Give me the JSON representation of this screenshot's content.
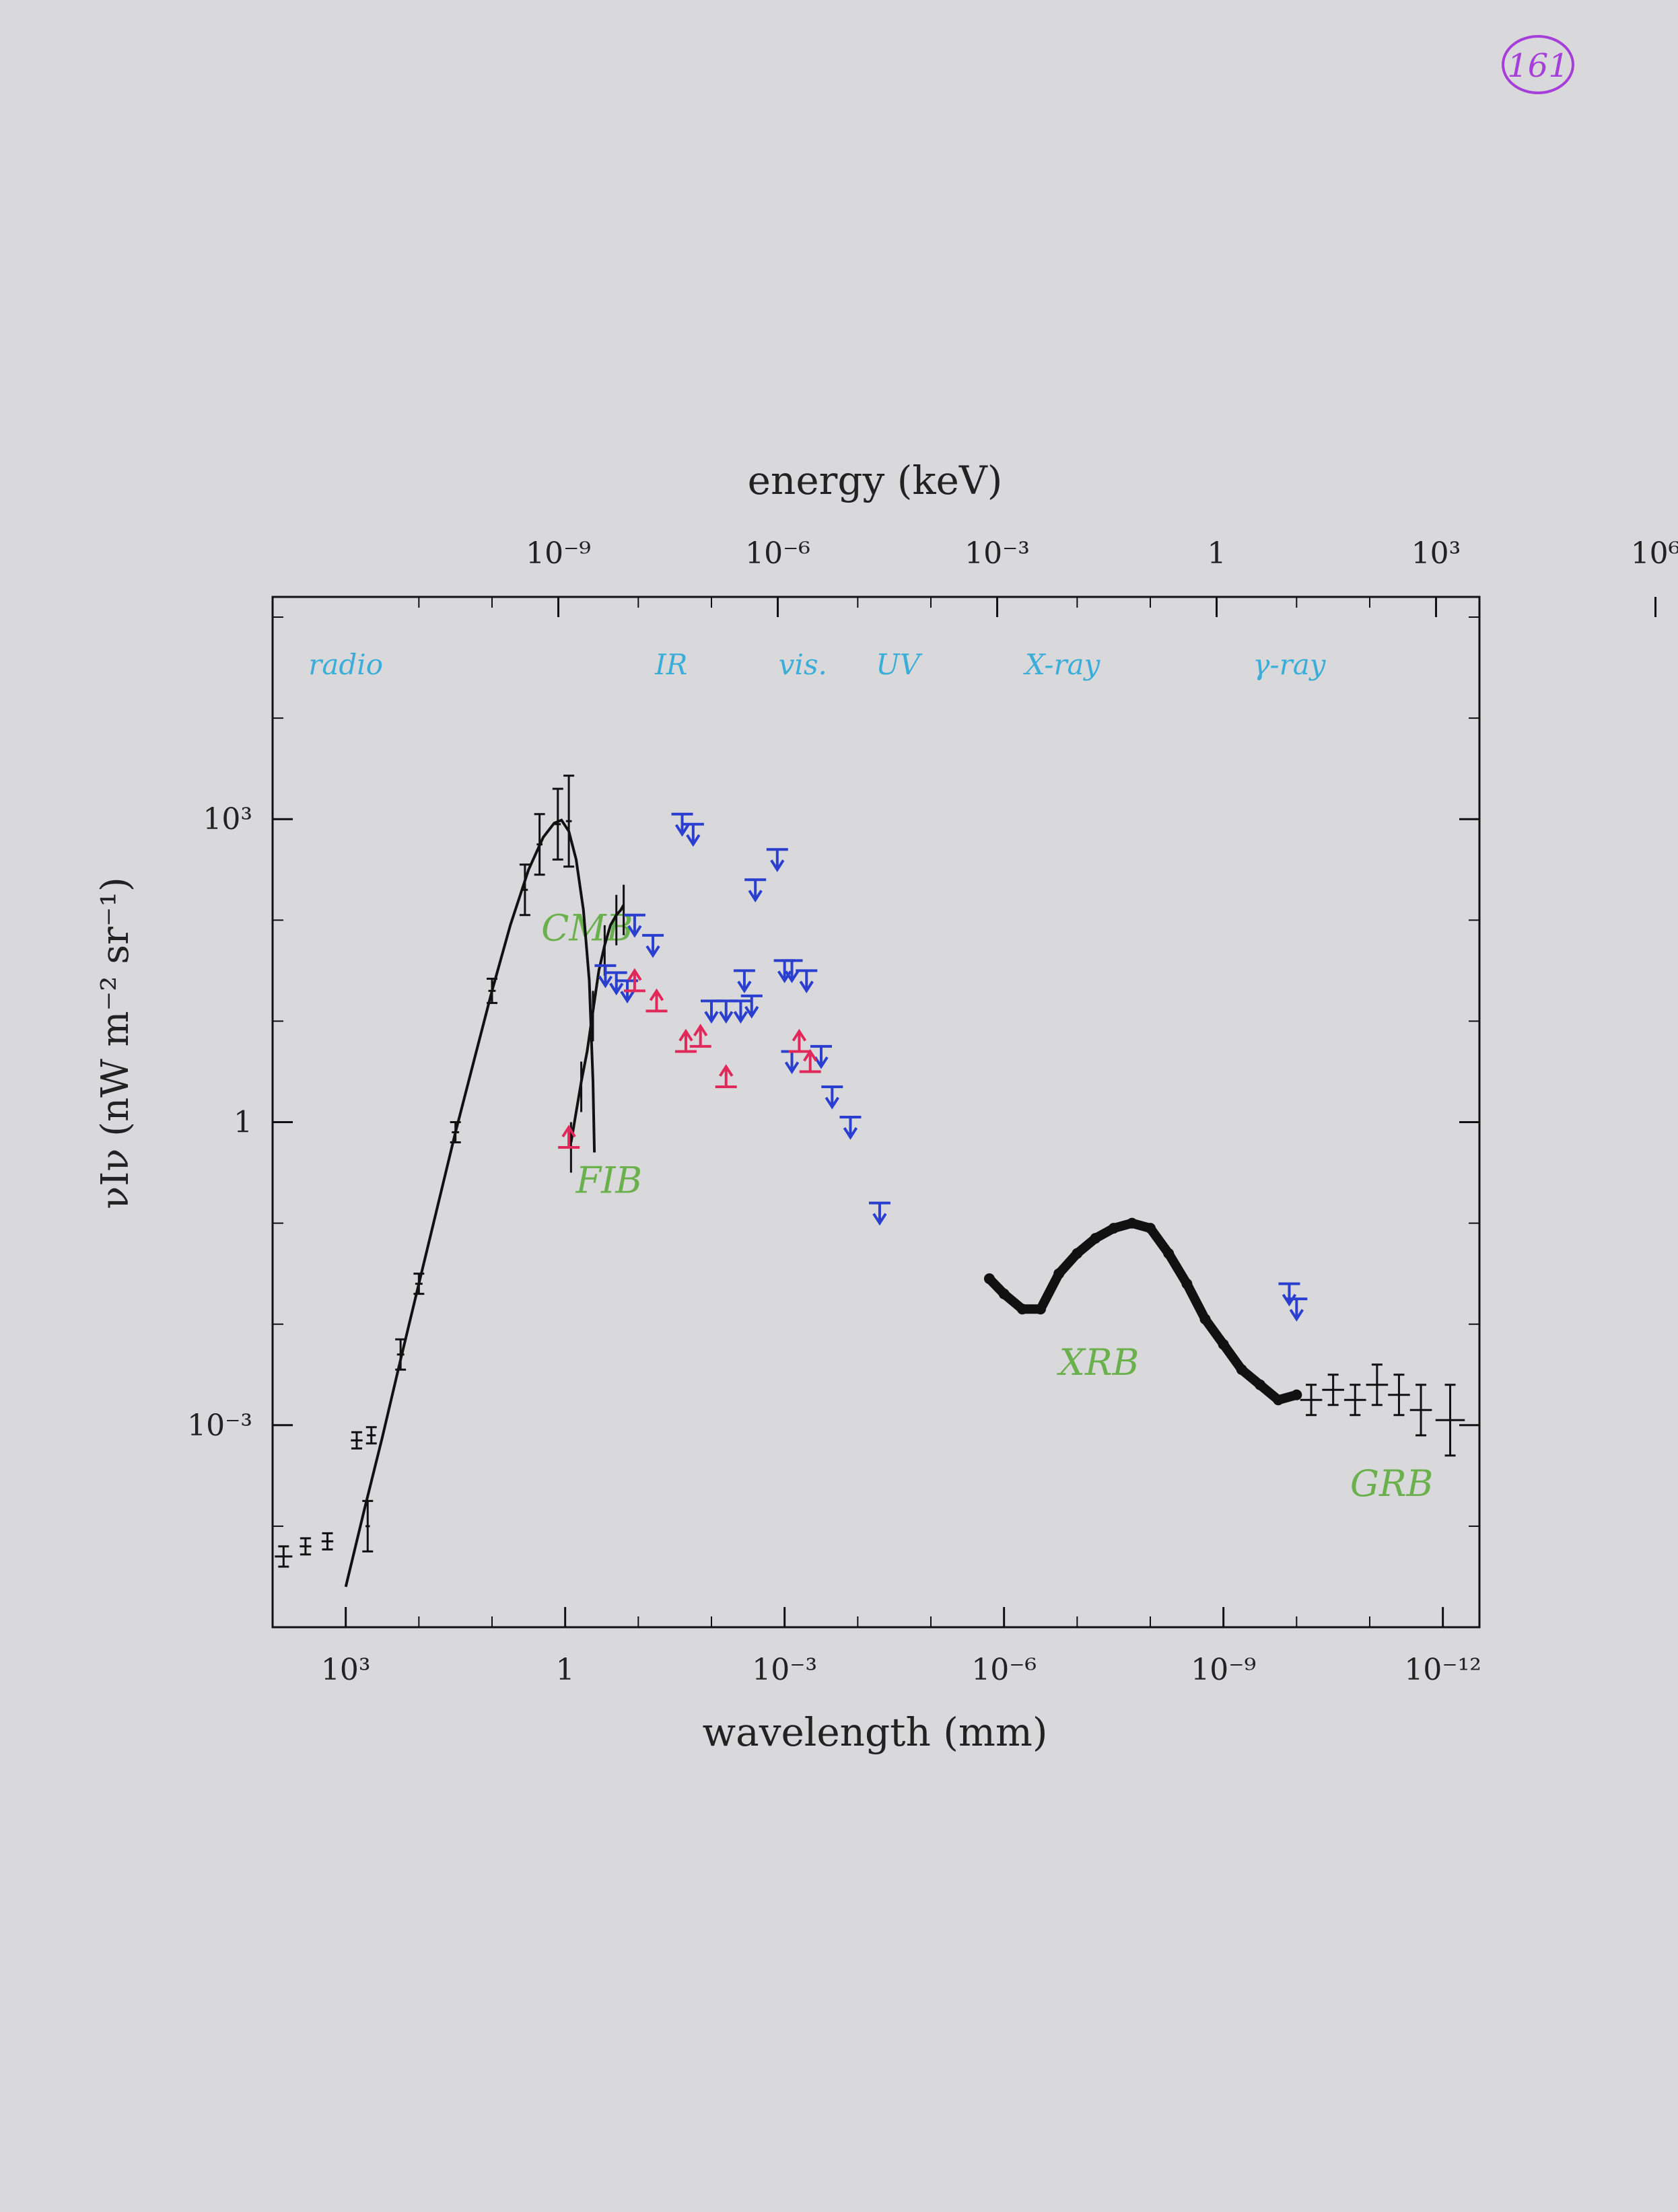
{
  "page_number": "161",
  "colors": {
    "paper": "#d9d9db",
    "ink": "#111111",
    "band_label": "#3aaed8",
    "background_label": "#6ab04c",
    "upper_limit": "#2a3fcf",
    "lower_limit": "#e0285a",
    "page_number_ring": "#a63fd9"
  },
  "chart_data": {
    "type": "scatter",
    "title": "",
    "xlabel_bottom": "wavelength (mm)",
    "xlabel_top": "energy (keV)",
    "ylabel": "νIν (nW m⁻² sr⁻¹)",
    "x_scale": "log",
    "x_log10_range": [
      4,
      -12.5
    ],
    "y_scale": "log",
    "y_log10_range": [
      -5,
      5.2
    ],
    "bottom_ticks": [
      {
        "log10": 3,
        "label": "10³"
      },
      {
        "log10": 0,
        "label": "1"
      },
      {
        "log10": -3,
        "label": "10⁻³"
      },
      {
        "log10": -6,
        "label": "10⁻⁶"
      },
      {
        "log10": -9,
        "label": "10⁻⁹"
      },
      {
        "log10": -12,
        "label": "10⁻¹²"
      }
    ],
    "top_ticks": [
      {
        "log10_energy": -9,
        "label": "10⁻⁹"
      },
      {
        "log10_energy": -6,
        "label": "10⁻⁶"
      },
      {
        "log10_energy": -3,
        "label": "10⁻³"
      },
      {
        "log10_energy": 0,
        "label": "1"
      },
      {
        "log10_energy": 3,
        "label": "10³"
      },
      {
        "log10_energy": 6,
        "label": "10⁶"
      }
    ],
    "y_ticks": [
      {
        "log10": 3,
        "label": "10³"
      },
      {
        "log10": 0,
        "label": "1"
      },
      {
        "log10": -3,
        "label": "10⁻³"
      }
    ],
    "band_labels": [
      {
        "text": "radio",
        "log10_wavelength": 3.0
      },
      {
        "text": "IR",
        "log10_wavelength": -1.45
      },
      {
        "text": "vis.",
        "log10_wavelength": -3.25
      },
      {
        "text": "UV",
        "log10_wavelength": -4.55
      },
      {
        "text": "X-ray",
        "log10_wavelength": -6.8
      },
      {
        "text": "γ-ray",
        "log10_wavelength": -9.9
      }
    ],
    "background_labels": [
      {
        "text": "CMB",
        "log10_wavelength": -0.3,
        "log10_intensity": 1.8
      },
      {
        "text": "FIB",
        "log10_wavelength": -0.6,
        "log10_intensity": -0.7
      },
      {
        "text": "XRB",
        "log10_wavelength": -7.3,
        "log10_intensity": -2.5
      },
      {
        "text": "GRB",
        "log10_wavelength": -11.3,
        "log10_intensity": -3.7
      }
    ],
    "series": [
      {
        "role": "CMB model curve",
        "points": [
          [
            3.0,
            -4.6
          ],
          [
            2.75,
            -3.85
          ],
          [
            2.5,
            -3.12
          ],
          [
            2.25,
            -2.35
          ],
          [
            2.0,
            -1.6
          ],
          [
            1.75,
            -0.85
          ],
          [
            1.5,
            -0.1
          ],
          [
            1.25,
            0.6
          ],
          [
            1.0,
            1.3
          ],
          [
            0.75,
            1.95
          ],
          [
            0.5,
            2.5
          ],
          [
            0.3,
            2.82
          ],
          [
            0.15,
            2.96
          ],
          [
            0.05,
            2.99
          ],
          [
            -0.05,
            2.88
          ],
          [
            -0.15,
            2.6
          ],
          [
            -0.25,
            2.1
          ],
          [
            -0.33,
            1.4
          ],
          [
            -0.38,
            0.4
          ],
          [
            -0.4,
            -0.3
          ]
        ]
      },
      {
        "role": "FIB spectrum",
        "points": [
          [
            -0.08,
            -0.2
          ],
          [
            -0.15,
            0.1
          ],
          [
            -0.22,
            0.4
          ],
          [
            -0.3,
            0.7
          ],
          [
            -0.38,
            1.1
          ],
          [
            -0.46,
            1.5
          ],
          [
            -0.54,
            1.75
          ],
          [
            -0.62,
            1.95
          ],
          [
            -0.7,
            2.05
          ],
          [
            -0.76,
            2.1
          ],
          [
            -0.8,
            2.15
          ]
        ]
      },
      {
        "role": "CMB and radio measurements",
        "points": [
          {
            "x": 3.85,
            "y": -4.3,
            "xerr": 0.12,
            "yerr": 0.1
          },
          {
            "x": 3.55,
            "y": -4.2,
            "xerr": 0.08,
            "yerr": 0.08
          },
          {
            "x": 3.25,
            "y": -4.15,
            "xerr": 0.08,
            "yerr": 0.08
          },
          {
            "x": 2.85,
            "y": -3.15,
            "xerr": 0.08,
            "yerr": 0.08
          },
          {
            "x": 2.65,
            "y": -3.1,
            "xerr": 0.06,
            "yerr": 0.08
          },
          {
            "x": 2.7,
            "y": -4.0,
            "xerr": 0.03,
            "yerr": 0.25
          },
          {
            "x": 2.25,
            "y": -2.3,
            "xerr": 0.05,
            "yerr": 0.15
          },
          {
            "x": 2.0,
            "y": -1.6,
            "xerr": 0.05,
            "yerr": 0.1
          },
          {
            "x": 1.5,
            "y": -0.1,
            "xerr": 0.05,
            "yerr": 0.1
          },
          {
            "x": 1.0,
            "y": 1.3,
            "xerr": 0.05,
            "yerr": 0.12
          },
          {
            "x": 0.55,
            "y": 2.3,
            "xerr": 0.04,
            "yerr": 0.25
          },
          {
            "x": 0.35,
            "y": 2.75,
            "xerr": 0.04,
            "yerr": 0.3
          },
          {
            "x": 0.1,
            "y": 2.95,
            "xerr": 0.04,
            "yerr": 0.35
          },
          {
            "x": -0.05,
            "y": 2.98,
            "xerr": 0.04,
            "yerr": 0.45
          }
        ]
      },
      {
        "role": "upper limits",
        "points": [
          [
            -0.55,
            1.55
          ],
          [
            -0.7,
            1.48
          ],
          [
            -0.85,
            1.4
          ],
          [
            -0.95,
            2.05
          ],
          [
            -1.2,
            1.85
          ],
          [
            -1.6,
            3.05
          ],
          [
            -1.75,
            2.95
          ],
          [
            -2.0,
            1.2
          ],
          [
            -2.2,
            1.2
          ],
          [
            -2.4,
            1.2
          ],
          [
            -2.45,
            1.5
          ],
          [
            -2.55,
            1.25
          ],
          [
            -2.6,
            2.4
          ],
          [
            -2.9,
            2.7
          ],
          [
            -3.0,
            1.6
          ],
          [
            -3.1,
            1.6
          ],
          [
            -3.1,
            0.7
          ],
          [
            -3.3,
            1.5
          ],
          [
            -3.5,
            0.75
          ],
          [
            -3.65,
            0.35
          ],
          [
            -3.9,
            0.05
          ],
          [
            -4.3,
            -0.8
          ],
          [
            -9.9,
            -1.6
          ],
          [
            -10.0,
            -1.75
          ]
        ]
      },
      {
        "role": "lower limits",
        "points": [
          [
            -0.05,
            -0.25
          ],
          [
            -0.95,
            1.3
          ],
          [
            -1.25,
            1.1
          ],
          [
            -1.65,
            0.7
          ],
          [
            -1.85,
            0.75
          ],
          [
            -2.2,
            0.35
          ],
          [
            -3.2,
            0.7
          ],
          [
            -3.35,
            0.5
          ]
        ]
      },
      {
        "role": "X-ray background",
        "points": [
          [
            -5.8,
            -1.55
          ],
          [
            -6.0,
            -1.7
          ],
          [
            -6.25,
            -1.85
          ],
          [
            -6.5,
            -1.85
          ],
          [
            -6.75,
            -1.5
          ],
          [
            -7.0,
            -1.3
          ],
          [
            -7.25,
            -1.15
          ],
          [
            -7.5,
            -1.05
          ],
          [
            -7.75,
            -1.0
          ],
          [
            -8.0,
            -1.05
          ],
          [
            -8.25,
            -1.3
          ],
          [
            -8.5,
            -1.6
          ],
          [
            -8.75,
            -1.95
          ],
          [
            -9.0,
            -2.2
          ],
          [
            -9.25,
            -2.45
          ],
          [
            -9.5,
            -2.6
          ],
          [
            -9.75,
            -2.75
          ],
          [
            -10.0,
            -2.7
          ]
        ]
      },
      {
        "role": "gamma-ray background",
        "points": [
          {
            "x": -10.2,
            "y": -2.75,
            "xerr": 0.15,
            "yerr": 0.15
          },
          {
            "x": -10.5,
            "y": -2.65,
            "xerr": 0.15,
            "yerr": 0.15
          },
          {
            "x": -10.8,
            "y": -2.75,
            "xerr": 0.15,
            "yerr": 0.15
          },
          {
            "x": -11.1,
            "y": -2.6,
            "xerr": 0.15,
            "yerr": 0.2
          },
          {
            "x": -11.4,
            "y": -2.7,
            "xerr": 0.15,
            "yerr": 0.2
          },
          {
            "x": -11.7,
            "y": -2.85,
            "xerr": 0.15,
            "yerr": 0.25
          },
          {
            "x": -12.1,
            "y": -2.95,
            "xerr": 0.2,
            "yerr": 0.35
          }
        ]
      }
    ]
  }
}
